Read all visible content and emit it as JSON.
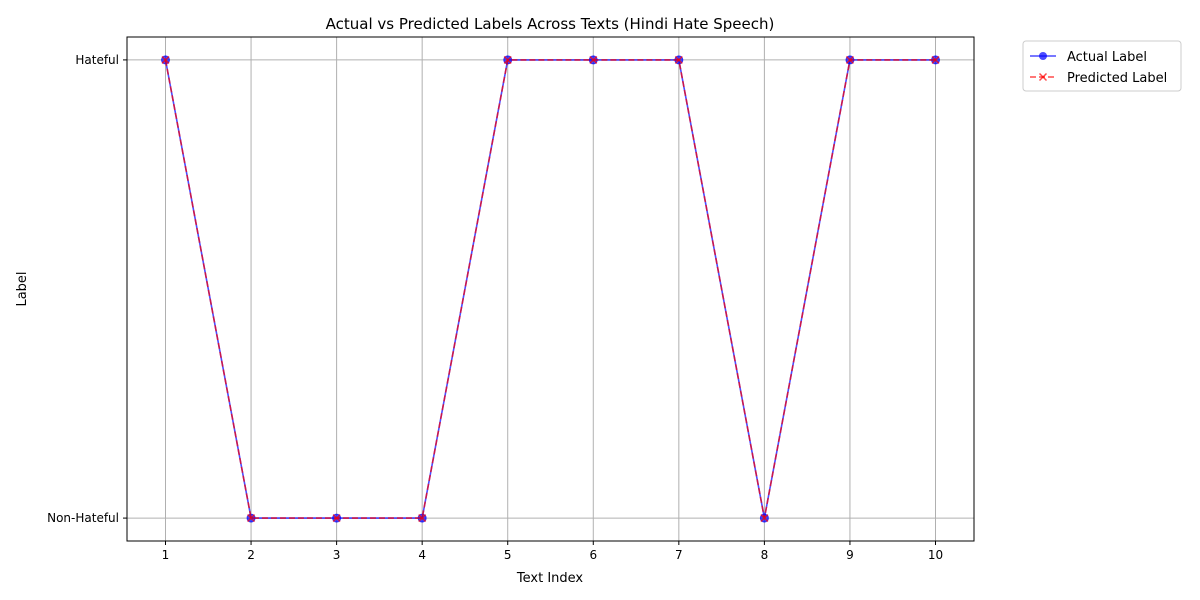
{
  "chart_data": {
    "type": "line",
    "title": "Actual vs Predicted Labels Across Texts (Hindi Hate Speech)",
    "xlabel": "Text Index",
    "ylabel": "Label",
    "x": [
      1,
      2,
      3,
      4,
      5,
      6,
      7,
      8,
      9,
      10
    ],
    "x_ticks": [
      "1",
      "2",
      "3",
      "4",
      "5",
      "6",
      "7",
      "8",
      "9",
      "10"
    ],
    "y_ticks": [
      {
        "value": 0,
        "label": "Non-Hateful"
      },
      {
        "value": 1,
        "label": "Hateful"
      }
    ],
    "xlim": [
      0.55,
      10.45
    ],
    "ylim": [
      -0.05,
      1.05
    ],
    "grid": true,
    "legend_position": "outside-top-right",
    "series": [
      {
        "name": "Actual Label",
        "values": [
          1,
          0,
          0,
          0,
          1,
          1,
          1,
          0,
          1,
          1
        ],
        "color": "#0000ff",
        "line_style": "solid",
        "marker": "circle"
      },
      {
        "name": "Predicted Label",
        "values": [
          1,
          0,
          0,
          0,
          1,
          1,
          1,
          0,
          1,
          1
        ],
        "color": "#ff0000",
        "line_style": "dashed",
        "marker": "x"
      }
    ]
  }
}
